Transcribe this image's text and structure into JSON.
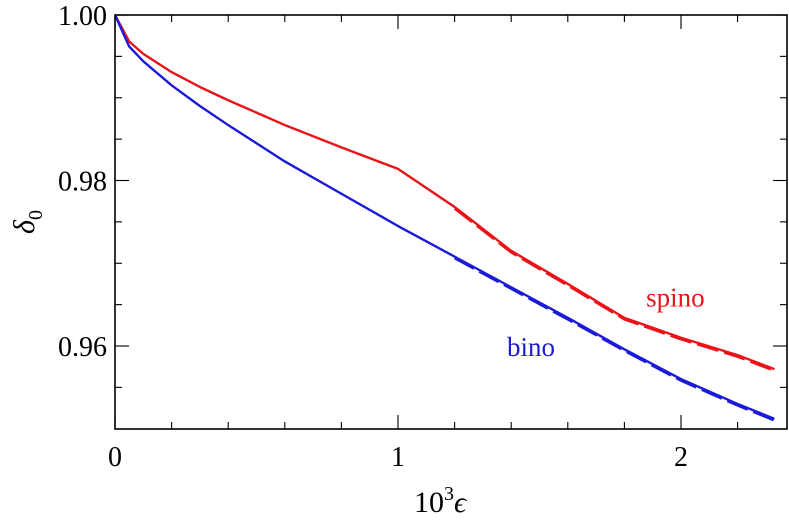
{
  "chart_data": {
    "type": "line",
    "title": "",
    "xlabel_base": "10",
    "xlabel_sup": "3",
    "xlabel_var": "ϵ",
    "ylabel_var": "δ",
    "ylabel_sub": "0",
    "xlim": [
      0,
      2.4
    ],
    "ylim": [
      0.951,
      1.0
    ],
    "x_ticks": [
      0,
      1,
      2
    ],
    "x_tick_labels": [
      "0",
      "1",
      "2"
    ],
    "y_ticks": [
      0.96,
      0.98,
      1.0
    ],
    "y_tick_labels": [
      "0.96",
      "0.98",
      "1.00"
    ],
    "x_minor_step": 0.2,
    "y_minor_step": 0.005,
    "grid": false,
    "legend": "none",
    "series": [
      {
        "name": "spino",
        "color": "#e8141a",
        "x": [
          0,
          0.05,
          0.1,
          0.2,
          0.3,
          0.4,
          0.5,
          0.6,
          0.8,
          1.0,
          1.2,
          1.4,
          1.6,
          1.8,
          2.0,
          2.2,
          2.33
        ],
        "y": [
          1.0,
          0.9968,
          0.9953,
          0.9931,
          0.9913,
          0.9897,
          0.9882,
          0.9867,
          0.984,
          0.9814,
          0.9768,
          0.9715,
          0.9675,
          0.9634,
          0.961,
          0.9589,
          0.9572
        ]
      },
      {
        "name": "bino",
        "color": "#1a1ad8",
        "x": [
          0,
          0.05,
          0.1,
          0.2,
          0.3,
          0.4,
          0.5,
          0.6,
          0.8,
          1.0,
          1.2,
          1.4,
          1.6,
          1.8,
          2.0,
          2.2,
          2.33
        ],
        "y": [
          1.0,
          0.9962,
          0.9944,
          0.9915,
          0.989,
          0.9867,
          0.9845,
          0.9823,
          0.9784,
          0.9745,
          0.9708,
          0.9671,
          0.9634,
          0.9596,
          0.956,
          0.953,
          0.9512
        ]
      }
    ],
    "annotations": [
      {
        "text": "spino",
        "color": "#e8141a",
        "x": 1.98,
        "y": 0.9648
      },
      {
        "text": "bino",
        "color": "#1a1ad8",
        "x": 1.47,
        "y": 0.9588
      }
    ]
  }
}
